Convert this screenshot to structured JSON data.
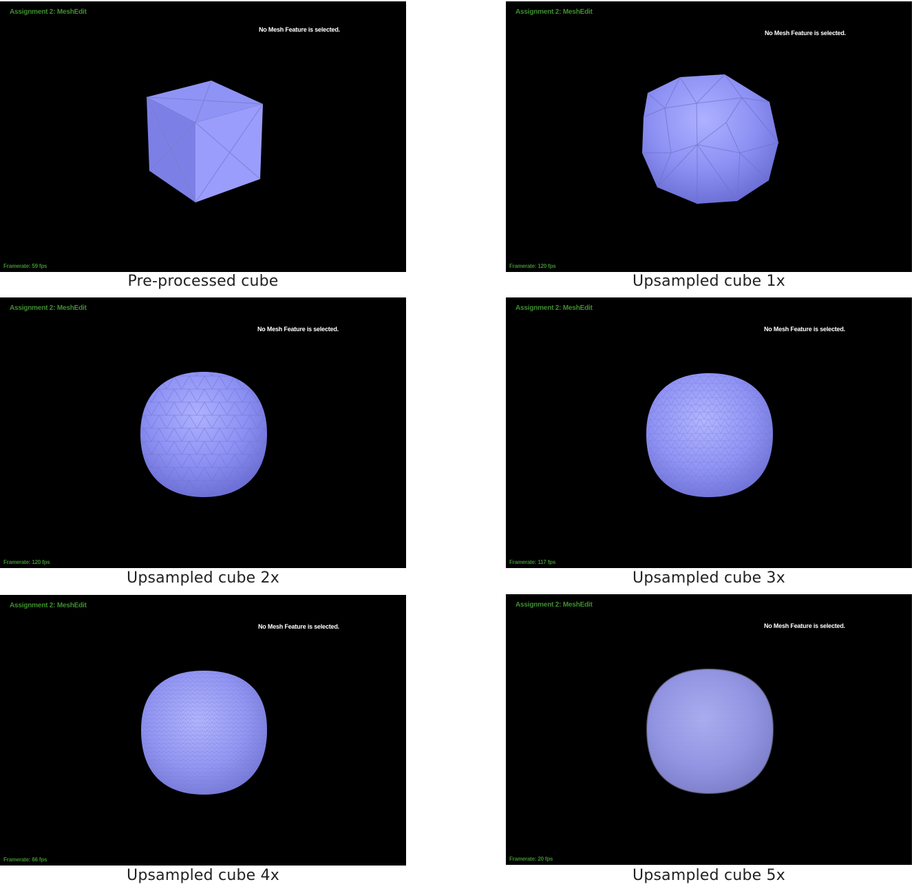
{
  "panels": [
    {
      "app_title": "Assignment 2: MeshEdit",
      "status": "No Mesh Feature is selected.",
      "framerate": "Framerate: 59 fps",
      "caption": "Pre-processed cube",
      "subdivision_level": 0
    },
    {
      "app_title": "Assignment 2: MeshEdit",
      "status": "No Mesh Feature is selected.",
      "framerate": "Framerate: 120 fps",
      "caption": "Upsampled cube 1x",
      "subdivision_level": 1
    },
    {
      "app_title": "Assignment 2: MeshEdit",
      "status": "No Mesh Feature is selected.",
      "framerate": "Framerate: 120 fps",
      "caption": "Upsampled cube 2x",
      "subdivision_level": 2
    },
    {
      "app_title": "Assignment 2: MeshEdit",
      "status": "No Mesh Feature is selected.",
      "framerate": "Framerate: 117 fps",
      "caption": "Upsampled cube 3x",
      "subdivision_level": 3
    },
    {
      "app_title": "Assignment 2: MeshEdit",
      "status": "No Mesh Feature is selected.",
      "framerate": "Framerate: 66 fps",
      "caption": "Upsampled cube 4x",
      "subdivision_level": 4
    },
    {
      "app_title": "Assignment 2: MeshEdit",
      "status": "No Mesh Feature is selected.",
      "framerate": "Framerate: 20 fps",
      "caption": "Upsampled cube 5x",
      "subdivision_level": 5
    }
  ],
  "colors": {
    "background": "#000000",
    "title_green": "#3f8f2f",
    "mesh_light": "#a9acff",
    "mesh_mid": "#8d90f2",
    "mesh_dark": "#6f72d8",
    "wire": "#7a7ccc"
  }
}
